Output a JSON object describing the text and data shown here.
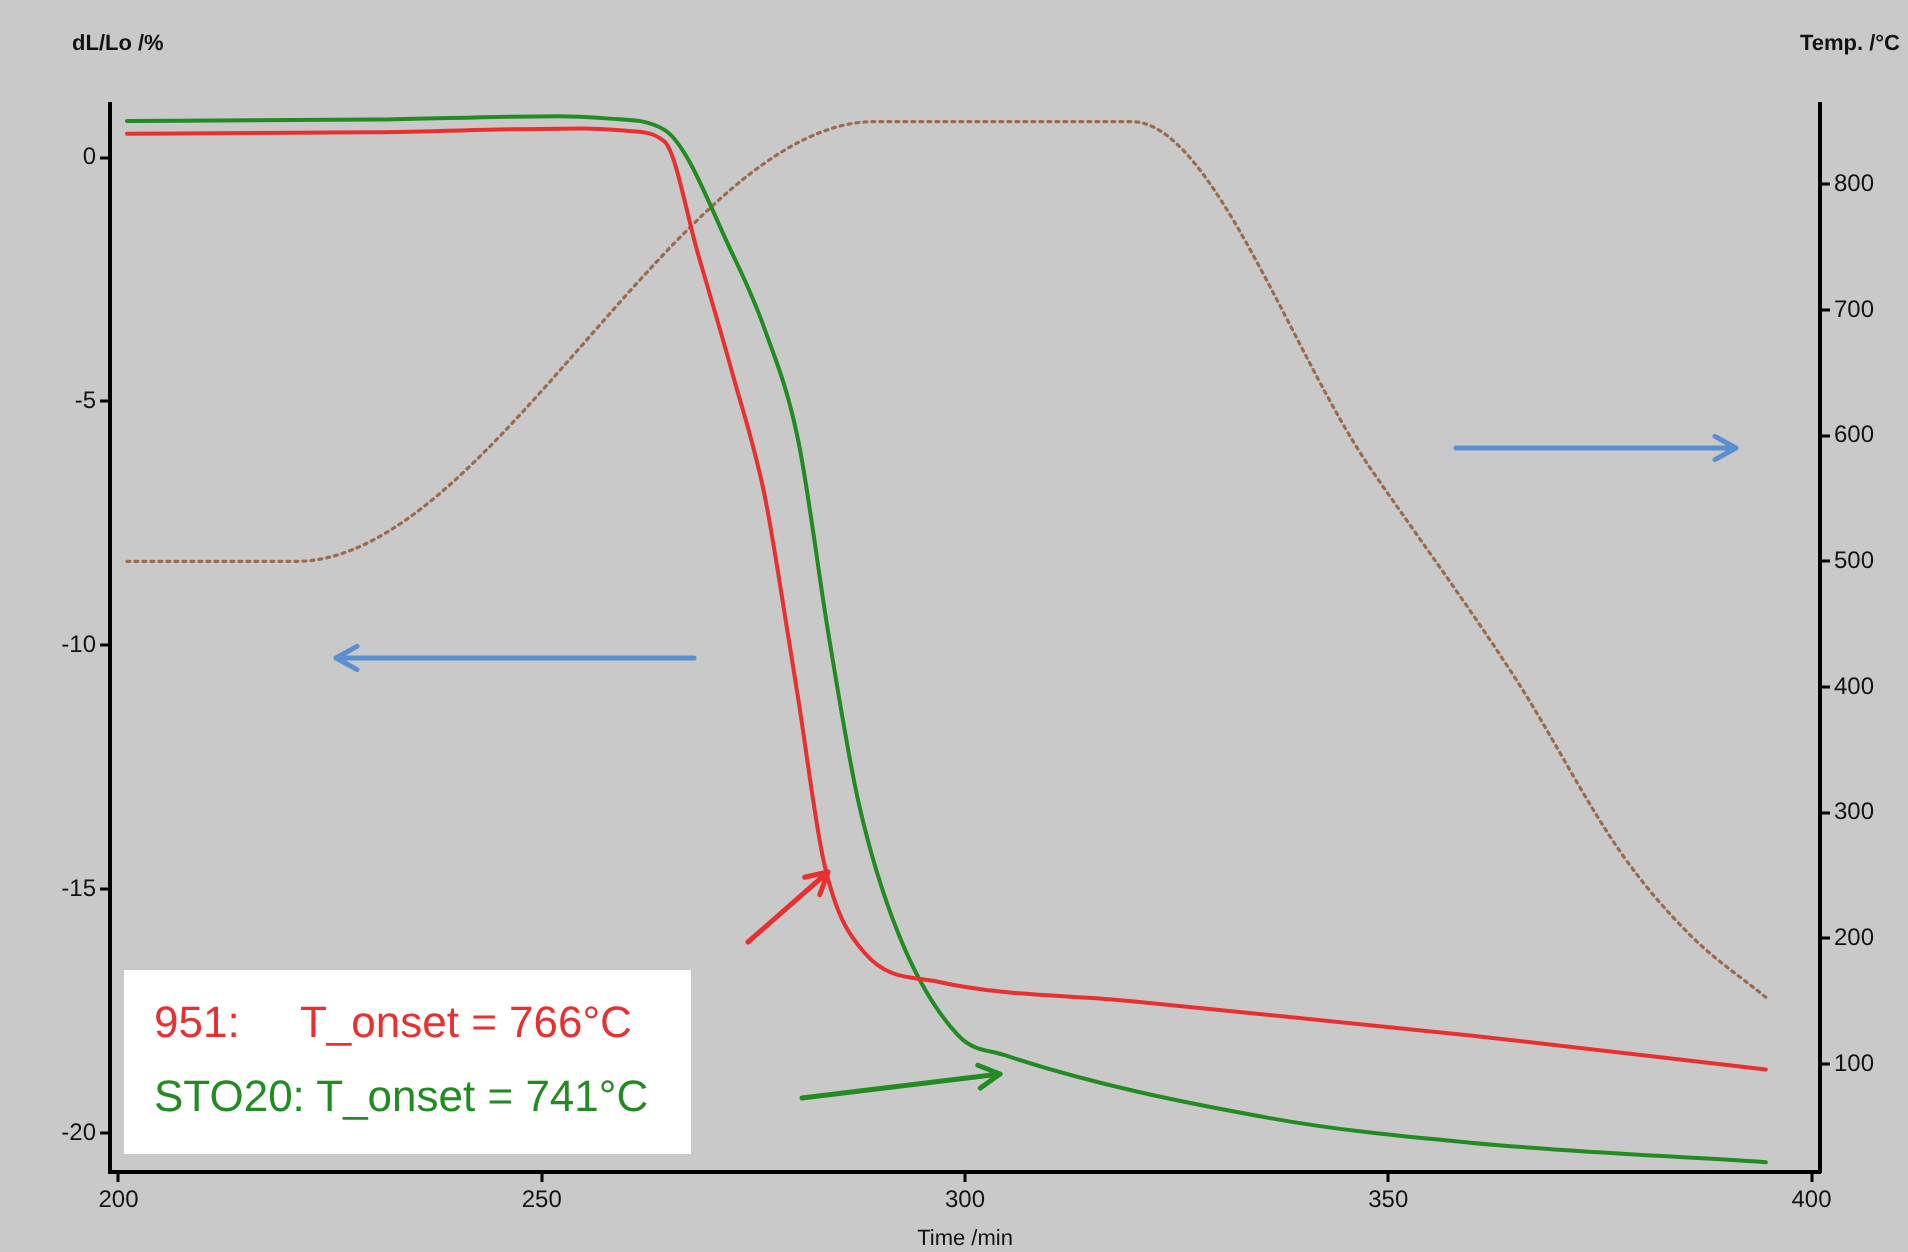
{
  "chart_data": {
    "type": "line",
    "xlabel": "Time /min",
    "ylabel": "dL/Lo /%",
    "y2label": "Temp. /°C",
    "xlim": [
      199,
      401
    ],
    "xticks": [
      200,
      250,
      300,
      350,
      400
    ],
    "ylim": [
      -20.8,
      1.1
    ],
    "yticks": [
      -20,
      -15,
      -10,
      -5,
      0
    ],
    "y2lim": [
      14,
      864
    ],
    "y2ticks": [
      100,
      200,
      300,
      400,
      500,
      600,
      700,
      800
    ],
    "grid": false,
    "legend": false,
    "marker": "none",
    "line_style": "solid",
    "annotations": [
      "951:     T_onset = 766°C",
      "STO20: T_onset = 741°C"
    ],
    "series": [
      {
        "color": "#e83030",
        "x": [
          201,
          230,
          255,
          260,
          264.5,
          268.5,
          272.6,
          276.3,
          279.2,
          280.3,
          283.4,
          288.1,
          296.8,
          319.7,
          359.7,
          394.6
        ],
        "values": [
          0.49,
          0.52,
          0.6,
          0.55,
          0.33,
          -2.0,
          -4.47,
          -6.9,
          -9.9,
          -11.1,
          -14.5,
          -16.3,
          -16.9,
          -17.3,
          -18.0,
          -18.7
        ]
      },
      {
        "color": "#228b22",
        "x": [
          201,
          230,
          252,
          258,
          264.5,
          272.6,
          276.3,
          280.3,
          283.9,
          287.4,
          292.1,
          299.2,
          304.6,
          336.2,
          359.7,
          394.6
        ],
        "values": [
          0.75,
          0.78,
          0.85,
          0.8,
          0.57,
          -2.0,
          -3.5,
          -5.8,
          -9.8,
          -13.2,
          -15.9,
          -18.0,
          -18.4,
          -19.7,
          -20.2,
          -20.6
        ]
      },
      {
        "color": "#9b6b4b",
        "axis": "y2",
        "line_style": "dotted",
        "x": [
          201,
          221,
          289.3,
          319.7,
          348,
          365.1,
          377.6,
          385.6,
          394.6
        ],
        "values": [
          500,
          500,
          850,
          850,
          573,
          406,
          267,
          203,
          153
        ]
      }
    ]
  }
}
